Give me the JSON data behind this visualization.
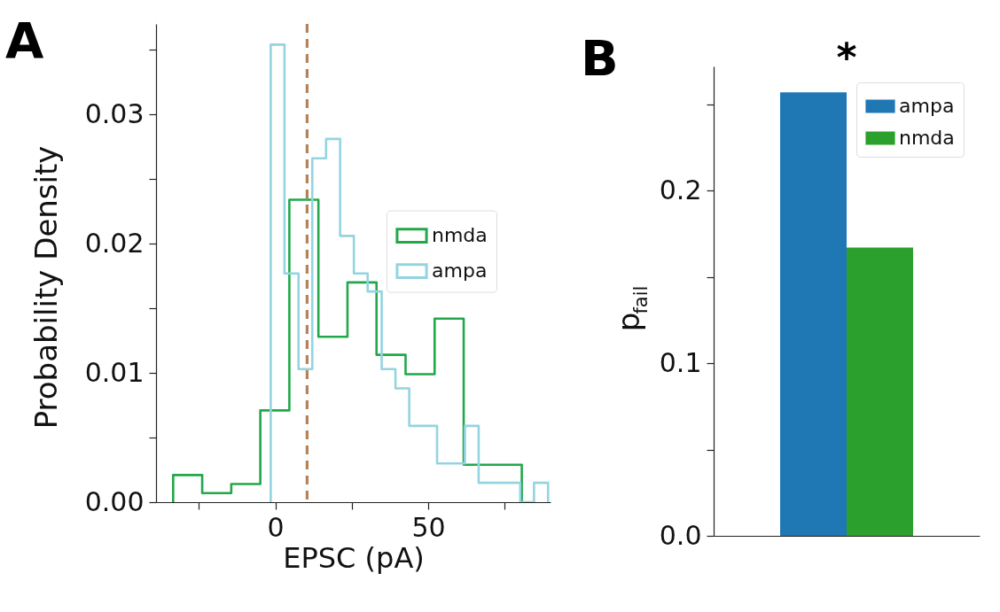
{
  "chart_data": [
    {
      "type": "step",
      "title": "A",
      "xlabel": "EPSC (pA)",
      "ylabel": "Probability Density",
      "xlim": [
        -39,
        90
      ],
      "xticks": [
        {
          "value": -25,
          "label": null
        },
        0,
        {
          "value": 25,
          "label": null
        },
        50,
        {
          "value": 75,
          "label": null
        }
      ],
      "ylim": [
        0,
        0.037
      ],
      "yticks": [
        {
          "value": 0,
          "label": "0.00"
        },
        {
          "value": 0.005,
          "label": null
        },
        0.01,
        {
          "value": 0.015,
          "label": null
        },
        0.02,
        {
          "value": 0.025,
          "label": null
        },
        0.03,
        {
          "value": 0.035,
          "label": null
        }
      ],
      "legend": "right",
      "ref_lines": [
        {
          "axis": "x",
          "value": 10.4,
          "color": "#b5835a",
          "line_style": "dashed"
        }
      ],
      "series": [
        {
          "name": "nmda",
          "color": "#22a84a",
          "x": [
            -33.4,
            -33.4,
            -23.9,
            -14.4,
            -4.9,
            4.6,
            14.1,
            23.6,
            33.1,
            42.6,
            52.1,
            61.6,
            71.1,
            80.6
          ],
          "values": [
            0,
            0.0021,
            0.0007,
            0.0014,
            0.0071,
            0.0234,
            0.0128,
            0.017,
            0.0114,
            0.0099,
            0.0142,
            0.0029,
            0.0029,
            0
          ]
        },
        {
          "name": "ampa",
          "color": "#94d4e0",
          "x": [
            -1.5,
            -1.5,
            3.0,
            7.6,
            12.1,
            16.6,
            21.2,
            25.7,
            30.2,
            34.8,
            39.3,
            43.8,
            48.4,
            52.9,
            57.4,
            62.0,
            66.5,
            71.0,
            75.6,
            80.1,
            84.6,
            89.2
          ],
          "values": [
            0,
            0.0354,
            0.0177,
            0.0103,
            0.0266,
            0.0281,
            0.0206,
            0.0177,
            0.0163,
            0.0103,
            0.0088,
            0.0059,
            0.0059,
            0.003,
            0.003,
            0.0059,
            0.0015,
            0.0015,
            0.0015,
            0,
            0.0015,
            0
          ]
        }
      ]
    },
    {
      "type": "bar",
      "title": "B",
      "ylabel": "p$_{fail}$",
      "categories": [
        null
      ],
      "ylim": [
        0,
        0.272
      ],
      "yticks": [
        {
          "value": 0,
          "label": "0.0"
        },
        {
          "value": 0.05,
          "label": null
        },
        0.1,
        {
          "value": 0.15,
          "label": null
        },
        0.2,
        {
          "value": 0.25,
          "label": null
        }
      ],
      "tick_labels": "y",
      "legend": "top right",
      "annotations": [
        "*"
      ],
      "series": [
        {
          "name": "ampa",
          "color": "#1f77b4",
          "values": [
            0.257
          ]
        },
        {
          "name": "nmda",
          "color": "#2ca02c",
          "values": [
            0.167
          ]
        }
      ]
    }
  ]
}
